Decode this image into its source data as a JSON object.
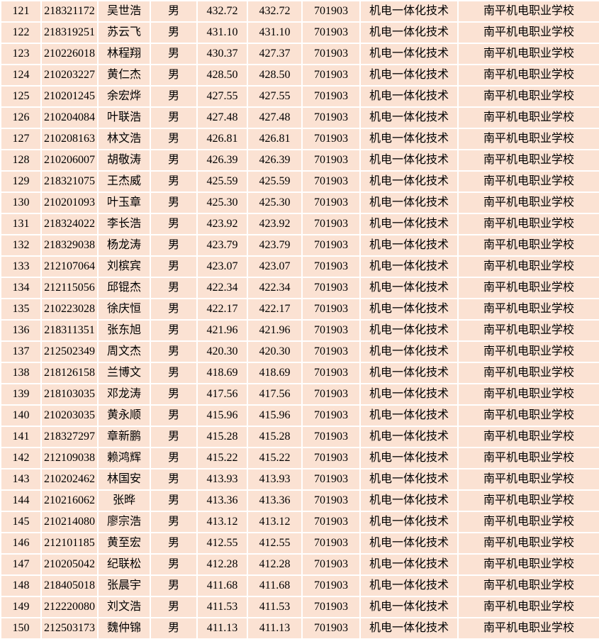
{
  "colors": {
    "cell_bg": "#fbe2d3",
    "grid": "#ffffff",
    "text": "#000000"
  },
  "table": {
    "rows": [
      [
        "121",
        "218321172",
        "吴世浩",
        "男",
        "432.72",
        "432.72",
        "701903",
        "机电一体化技术",
        "南平机电职业学校"
      ],
      [
        "122",
        "218319251",
        "苏云飞",
        "男",
        "431.10",
        "431.10",
        "701903",
        "机电一体化技术",
        "南平机电职业学校"
      ],
      [
        "123",
        "210226018",
        "林程翔",
        "男",
        "430.37",
        "427.37",
        "701903",
        "机电一体化技术",
        "南平机电职业学校"
      ],
      [
        "124",
        "210203227",
        "黄仁杰",
        "男",
        "428.50",
        "428.50",
        "701903",
        "机电一体化技术",
        "南平机电职业学校"
      ],
      [
        "125",
        "210201245",
        "余宏烨",
        "男",
        "427.55",
        "427.55",
        "701903",
        "机电一体化技术",
        "南平机电职业学校"
      ],
      [
        "126",
        "210204084",
        "叶联浩",
        "男",
        "427.48",
        "427.48",
        "701903",
        "机电一体化技术",
        "南平机电职业学校"
      ],
      [
        "127",
        "210208163",
        "林文浩",
        "男",
        "426.81",
        "426.81",
        "701903",
        "机电一体化技术",
        "南平机电职业学校"
      ],
      [
        "128",
        "210206007",
        "胡敬涛",
        "男",
        "426.39",
        "426.39",
        "701903",
        "机电一体化技术",
        "南平机电职业学校"
      ],
      [
        "129",
        "218321075",
        "王杰威",
        "男",
        "425.59",
        "425.59",
        "701903",
        "机电一体化技术",
        "南平机电职业学校"
      ],
      [
        "130",
        "210201093",
        "叶玉章",
        "男",
        "425.30",
        "425.30",
        "701903",
        "机电一体化技术",
        "南平机电职业学校"
      ],
      [
        "131",
        "218324022",
        "李长浩",
        "男",
        "423.92",
        "423.92",
        "701903",
        "机电一体化技术",
        "南平机电职业学校"
      ],
      [
        "132",
        "218329038",
        "杨龙涛",
        "男",
        "423.79",
        "423.79",
        "701903",
        "机电一体化技术",
        "南平机电职业学校"
      ],
      [
        "133",
        "212107064",
        "刘槟宾",
        "男",
        "423.07",
        "423.07",
        "701903",
        "机电一体化技术",
        "南平机电职业学校"
      ],
      [
        "134",
        "212115056",
        "邱锟杰",
        "男",
        "422.34",
        "422.34",
        "701903",
        "机电一体化技术",
        "南平机电职业学校"
      ],
      [
        "135",
        "210223028",
        "徐庆恒",
        "男",
        "422.17",
        "422.17",
        "701903",
        "机电一体化技术",
        "南平机电职业学校"
      ],
      [
        "136",
        "218311351",
        "张东旭",
        "男",
        "421.96",
        "421.96",
        "701903",
        "机电一体化技术",
        "南平机电职业学校"
      ],
      [
        "137",
        "212502349",
        "周文杰",
        "男",
        "420.30",
        "420.30",
        "701903",
        "机电一体化技术",
        "南平机电职业学校"
      ],
      [
        "138",
        "218126158",
        "兰博文",
        "男",
        "418.69",
        "418.69",
        "701903",
        "机电一体化技术",
        "南平机电职业学校"
      ],
      [
        "139",
        "218103035",
        "邓龙涛",
        "男",
        "417.56",
        "417.56",
        "701903",
        "机电一体化技术",
        "南平机电职业学校"
      ],
      [
        "140",
        "210203035",
        "黄永顺",
        "男",
        "415.96",
        "415.96",
        "701903",
        "机电一体化技术",
        "南平机电职业学校"
      ],
      [
        "141",
        "218327297",
        "章新鹏",
        "男",
        "415.28",
        "415.28",
        "701903",
        "机电一体化技术",
        "南平机电职业学校"
      ],
      [
        "142",
        "212109038",
        "赖鸿辉",
        "男",
        "415.22",
        "415.22",
        "701903",
        "机电一体化技术",
        "南平机电职业学校"
      ],
      [
        "143",
        "210202462",
        "林国安",
        "男",
        "413.93",
        "413.93",
        "701903",
        "机电一体化技术",
        "南平机电职业学校"
      ],
      [
        "144",
        "210216062",
        "张晔",
        "男",
        "413.36",
        "413.36",
        "701903",
        "机电一体化技术",
        "南平机电职业学校"
      ],
      [
        "145",
        "210214080",
        "廖宗浩",
        "男",
        "413.12",
        "413.12",
        "701903",
        "机电一体化技术",
        "南平机电职业学校"
      ],
      [
        "146",
        "212101185",
        "黄至宏",
        "男",
        "412.55",
        "412.55",
        "701903",
        "机电一体化技术",
        "南平机电职业学校"
      ],
      [
        "147",
        "210205042",
        "纪联松",
        "男",
        "412.28",
        "412.28",
        "701903",
        "机电一体化技术",
        "南平机电职业学校"
      ],
      [
        "148",
        "218405018",
        "张晨宇",
        "男",
        "411.68",
        "411.68",
        "701903",
        "机电一体化技术",
        "南平机电职业学校"
      ],
      [
        "149",
        "212220080",
        "刘文浩",
        "男",
        "411.53",
        "411.53",
        "701903",
        "机电一体化技术",
        "南平机电职业学校"
      ],
      [
        "150",
        "212503173",
        "魏仲锦",
        "男",
        "411.13",
        "411.13",
        "701903",
        "机电一体化技术",
        "南平机电职业学校"
      ]
    ]
  }
}
